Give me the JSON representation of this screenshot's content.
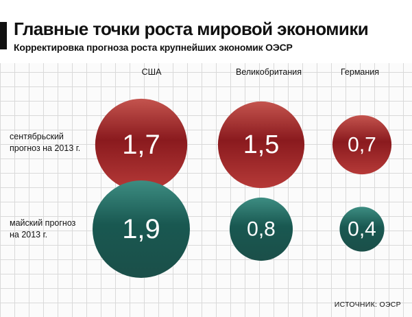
{
  "title": "Главные точки роста мировой экономики",
  "subtitle": "Корректировка прогноза роста крупнейших экономик ОЭСР",
  "source": "ИСТОЧНИК: ОЭСР",
  "colors": {
    "september": "#8f1c1f",
    "may": "#1c5e57"
  },
  "chart_data": {
    "type": "bubble",
    "title": "Главные точки роста мировой экономики",
    "subtitle": "Корректировка прогноза роста крупнейших экономик ОЭСР",
    "categories": [
      "США",
      "Великобритания",
      "Германия"
    ],
    "series": [
      {
        "name": "сентябрьский прогноз на 2013 г.",
        "label_lines": [
          "сентябрьский",
          "прогноз на 2013 г."
        ],
        "values": [
          1.7,
          1.5,
          0.7
        ],
        "labels": [
          "1,7",
          "1,5",
          "0,7"
        ]
      },
      {
        "name": "майский прогноз на 2013 г.",
        "label_lines": [
          "майский прогноз",
          "на 2013 г."
        ],
        "values": [
          1.9,
          0.8,
          0.4
        ],
        "labels": [
          "1,9",
          "0,8",
          "0,4"
        ]
      }
    ],
    "grid": true
  }
}
